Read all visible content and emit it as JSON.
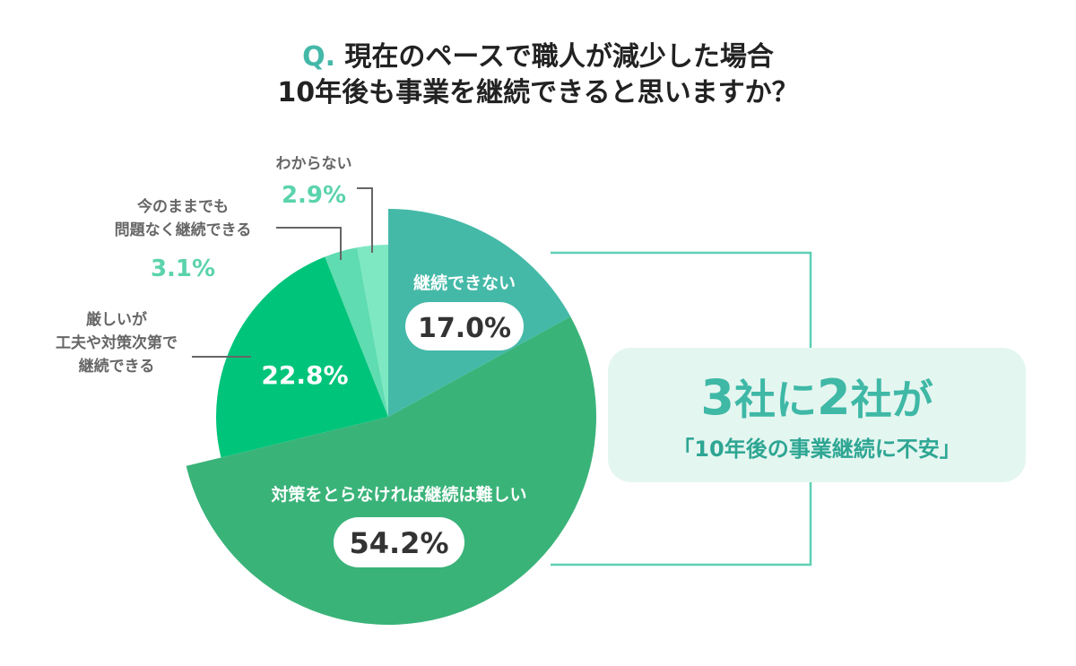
{
  "title": {
    "prefix": "Q.",
    "line1": "現在のペースで職人が減少した場合",
    "line2": "10年後も事業を継続できると思いますか？"
  },
  "chart_data": {
    "type": "pie",
    "start_angle_deg": 0,
    "direction": "clockwise",
    "slices": [
      {
        "label": "継続できない",
        "value": 17.0,
        "value_label": "17.0%",
        "color": "#45b9a8",
        "exploded": true
      },
      {
        "label": "対策をとらなければ継続は難しい",
        "value": 54.2,
        "value_label": "54.2%",
        "color": "#3ab379",
        "exploded": true
      },
      {
        "label": "厳しいが\n工夫や対策次第で\n継続できる",
        "value": 22.8,
        "value_label": "22.8%",
        "color": "#00c47a",
        "exploded": false
      },
      {
        "label": "今のままでも\n問題なく継続できる",
        "value": 3.1,
        "value_label": "3.1%",
        "color": "#5fdcb1",
        "exploded": false
      },
      {
        "label": "わからない",
        "value": 2.9,
        "value_label": "2.9%",
        "color": "#7ee8c2",
        "exploded": false
      }
    ]
  },
  "callout": {
    "line1_num1": "3",
    "line1_text1": "社に",
    "line1_num2": "2",
    "line1_text2": "社が",
    "line2": "「10年後の事業継続に不安」"
  },
  "colors": {
    "accent": "#44b8a8",
    "callout_bg": "#e4f6f0",
    "callout_text": "#3fb8a6",
    "external_label": "#5bd3ad",
    "leader_line": "#666666",
    "bracket_line": "#5fcfb5"
  }
}
